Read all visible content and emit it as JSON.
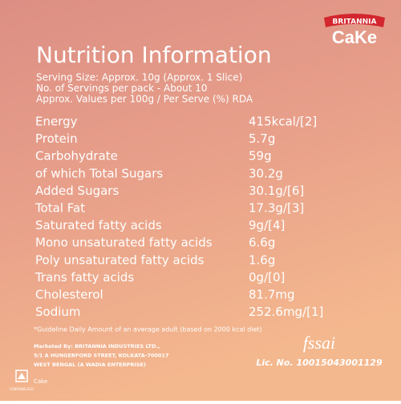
{
  "brand": {
    "name": "BRITANNIA",
    "product": "CaKe"
  },
  "title": "Nutrition Information",
  "serving": [
    "Serving Size: Approx. 10g (Approx. 1 Slice)",
    "No. of Servings per pack - About 10",
    "Approx. Values per 100g / Per Serve (%) RDA"
  ],
  "table": {
    "rows": [
      [
        "Energy",
        "415kcal/[2]"
      ],
      [
        "Protein",
        "5.7g"
      ],
      [
        "Carbohydrate",
        "59g"
      ],
      [
        "of which Total Sugars",
        "30.2g"
      ],
      [
        "Added Sugars",
        "30.1g/[6]"
      ],
      [
        "Total Fat",
        "17.3g/[3]"
      ],
      [
        "Saturated fatty acids",
        "9g/[4]"
      ],
      [
        "Mono unsaturated fatty acids",
        "6.6g"
      ],
      [
        "Poly unsaturated fatty acids",
        "1.6g"
      ],
      [
        "Trans fatty acids",
        "0g/[0]"
      ],
      [
        "Cholesterol",
        "81.7mg"
      ],
      [
        "Sodium",
        "252.6mg/[1]"
      ]
    ]
  },
  "footnote": "*Guideline Daily Amount of an average adult (based on 2000 kcal diet)",
  "marketed_by": [
    "Marketed By: BRITANNIA INDUSTRIES LTD.,",
    "5/1 A HUNGERFORD STREET, KOLKATA-700017",
    "WEST BENGAL (A WADIA ENTERPRISE)"
  ],
  "fssai": {
    "logo": "fssai",
    "license": "Lic. No. 10015043001129"
  },
  "egg_mark": "CONTAINS EGG",
  "product_name": "Cake"
}
